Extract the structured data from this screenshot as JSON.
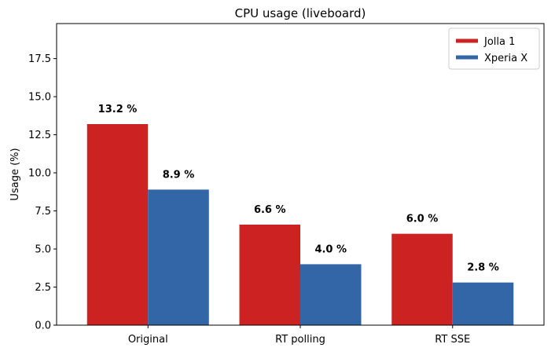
{
  "chart_data": {
    "type": "bar",
    "title": "CPU usage (liveboard)",
    "xlabel": "",
    "ylabel": "Usage (%)",
    "categories": [
      "Original",
      "RT polling",
      "RT SSE"
    ],
    "series": [
      {
        "name": "Jolla 1",
        "color": "#cc2222",
        "values": [
          13.2,
          6.6,
          6.0
        ],
        "labels": [
          "13.2 %",
          "6.6 %",
          "6.0 %"
        ]
      },
      {
        "name": "Xperia X",
        "color": "#3366a6",
        "values": [
          8.9,
          4.0,
          2.8
        ],
        "labels": [
          "8.9 %",
          "4.0 %",
          "2.8 %"
        ]
      }
    ],
    "ylim": [
      0,
      19.8
    ],
    "yticks": [
      0.0,
      2.5,
      5.0,
      7.5,
      10.0,
      12.5,
      15.0,
      17.5
    ],
    "ytick_labels": [
      "0.0",
      "2.5",
      "5.0",
      "7.5",
      "10.0",
      "12.5",
      "15.0",
      "17.5"
    ],
    "grid": false,
    "legend_position": "top-right"
  }
}
